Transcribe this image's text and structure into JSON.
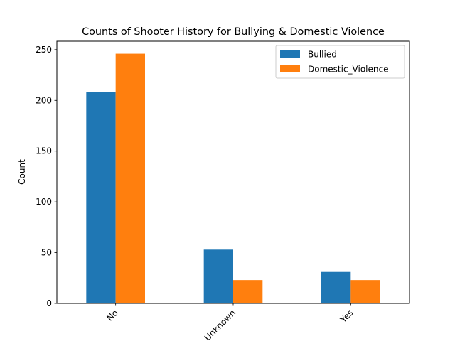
{
  "chart_data": {
    "type": "bar",
    "title": "Counts of Shooter History for Bullying & Domestic Violence",
    "xlabel": "",
    "ylabel": "Count",
    "categories": [
      "No",
      "Unknown",
      "Yes"
    ],
    "series": [
      {
        "name": "Bullied",
        "values": [
          208,
          53,
          31
        ],
        "color": "#1f77b4"
      },
      {
        "name": "Domestic_Violence",
        "values": [
          246,
          23,
          23
        ],
        "color": "#ff7f0e"
      }
    ],
    "ylim": [
      0,
      258.3
    ],
    "yticks": [
      0,
      50,
      100,
      150,
      200,
      250
    ],
    "grid": false,
    "legend_position": "top-right"
  }
}
